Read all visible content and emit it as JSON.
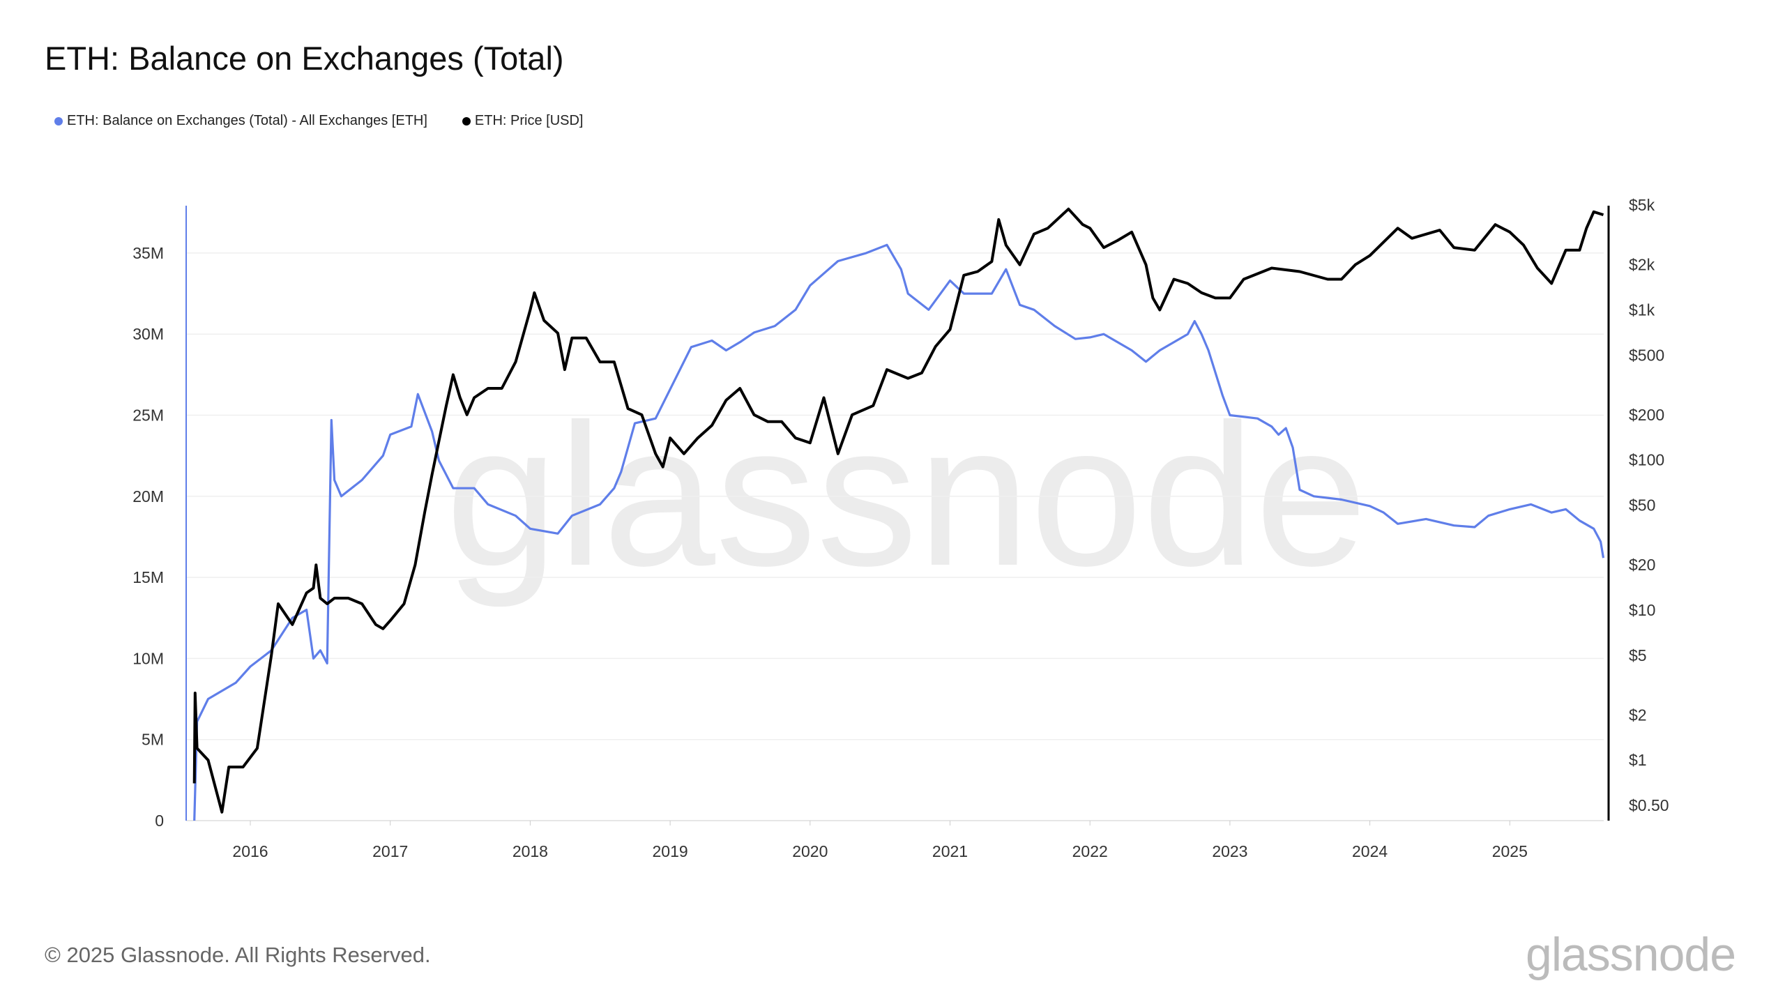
{
  "title": "ETH: Balance on Exchanges (Total)",
  "footer": "© 2025 Glassnode. All Rights Reserved.",
  "logo_text": "glassnode",
  "watermark_text": "glassnode",
  "chart_data": {
    "type": "line",
    "title": "ETH: Balance on Exchanges (Total)",
    "legend_position": "top-left",
    "grid": true,
    "x_ticks": [
      "2016",
      "2017",
      "2018",
      "2019",
      "2020",
      "2021",
      "2022",
      "2023",
      "2024",
      "2025"
    ],
    "y_left": {
      "scale": "linear",
      "ylim": [
        0,
        38000000
      ],
      "ticks": [
        {
          "v": 0,
          "label": "0"
        },
        {
          "v": 5000000,
          "label": "5M"
        },
        {
          "v": 10000000,
          "label": "10M"
        },
        {
          "v": 15000000,
          "label": "15M"
        },
        {
          "v": 20000000,
          "label": "20M"
        },
        {
          "v": 25000000,
          "label": "25M"
        },
        {
          "v": 30000000,
          "label": "30M"
        },
        {
          "v": 35000000,
          "label": "35M"
        }
      ]
    },
    "y_right": {
      "scale": "log",
      "ylim": [
        0.4,
        5000
      ],
      "ticks": [
        {
          "v": 5000,
          "label": "$5k"
        },
        {
          "v": 2000,
          "label": "$2k"
        },
        {
          "v": 1000,
          "label": "$1k"
        },
        {
          "v": 500,
          "label": "$500"
        },
        {
          "v": 200,
          "label": "$200"
        },
        {
          "v": 100,
          "label": "$100"
        },
        {
          "v": 50,
          "label": "$50"
        },
        {
          "v": 20,
          "label": "$20"
        },
        {
          "v": 10,
          "label": "$10"
        },
        {
          "v": 5,
          "label": "$5"
        },
        {
          "v": 2,
          "label": "$2"
        },
        {
          "v": 1,
          "label": "$1"
        },
        {
          "v": 0.5,
          "label": "$0.50"
        }
      ]
    },
    "series": [
      {
        "name": "ETH: Balance on Exchanges (Total) - All Exchanges [ETH]",
        "color": "#5f7ee9",
        "axis": "left",
        "points": [
          [
            "2015-08-08",
            0
          ],
          [
            "2015-08-15",
            6100000
          ],
          [
            "2015-09-13",
            7500000
          ],
          [
            "2015-11-24",
            8500000
          ],
          [
            "2016-01-01",
            9500000
          ],
          [
            "2016-02-25",
            10500000
          ],
          [
            "2016-04-20",
            12500000
          ],
          [
            "2016-05-27",
            13000000
          ],
          [
            "2016-06-14",
            10000000
          ],
          [
            "2016-07-02",
            10500000
          ],
          [
            "2016-07-20",
            9700000
          ],
          [
            "2016-07-31",
            24700000
          ],
          [
            "2016-08-08",
            21000000
          ],
          [
            "2016-08-26",
            20000000
          ],
          [
            "2016-10-19",
            21000000
          ],
          [
            "2016-12-13",
            22500000
          ],
          [
            "2017-01-01",
            23800000
          ],
          [
            "2017-02-25",
            24300000
          ],
          [
            "2017-03-14",
            26300000
          ],
          [
            "2017-04-20",
            24000000
          ],
          [
            "2017-05-08",
            22200000
          ],
          [
            "2017-06-14",
            20500000
          ],
          [
            "2017-08-08",
            20500000
          ],
          [
            "2017-09-13",
            19500000
          ],
          [
            "2017-11-24",
            18800000
          ],
          [
            "2018-01-01",
            18000000
          ],
          [
            "2018-03-14",
            17700000
          ],
          [
            "2018-04-20",
            18800000
          ],
          [
            "2018-07-02",
            19500000
          ],
          [
            "2018-08-08",
            20500000
          ],
          [
            "2018-08-26",
            21500000
          ],
          [
            "2018-09-13",
            23000000
          ],
          [
            "2018-10-01",
            24500000
          ],
          [
            "2018-11-24",
            24800000
          ],
          [
            "2019-01-01",
            26600000
          ],
          [
            "2019-02-25",
            29200000
          ],
          [
            "2019-04-20",
            29600000
          ],
          [
            "2019-05-27",
            29000000
          ],
          [
            "2019-07-02",
            29500000
          ],
          [
            "2019-08-08",
            30100000
          ],
          [
            "2019-10-01",
            30500000
          ],
          [
            "2019-11-24",
            31500000
          ],
          [
            "2020-01-01",
            33000000
          ],
          [
            "2020-03-14",
            34500000
          ],
          [
            "2020-05-27",
            35000000
          ],
          [
            "2020-07-20",
            35500000
          ],
          [
            "2020-08-26",
            34000000
          ],
          [
            "2020-09-13",
            32500000
          ],
          [
            "2020-11-06",
            31500000
          ],
          [
            "2021-01-01",
            33300000
          ],
          [
            "2021-02-06",
            32500000
          ],
          [
            "2021-04-20",
            32500000
          ],
          [
            "2021-05-27",
            34000000
          ],
          [
            "2021-07-02",
            31800000
          ],
          [
            "2021-08-08",
            31500000
          ],
          [
            "2021-10-01",
            30500000
          ],
          [
            "2021-11-24",
            29700000
          ],
          [
            "2022-01-01",
            29800000
          ],
          [
            "2022-02-06",
            30000000
          ],
          [
            "2022-04-20",
            29000000
          ],
          [
            "2022-05-27",
            28300000
          ],
          [
            "2022-07-02",
            29000000
          ],
          [
            "2022-09-13",
            30000000
          ],
          [
            "2022-10-01",
            30800000
          ],
          [
            "2022-10-19",
            30000000
          ],
          [
            "2022-11-06",
            29000000
          ],
          [
            "2022-12-13",
            26200000
          ],
          [
            "2023-01-01",
            25000000
          ],
          [
            "2023-03-14",
            24800000
          ],
          [
            "2023-04-20",
            24300000
          ],
          [
            "2023-05-08",
            23800000
          ],
          [
            "2023-05-27",
            24200000
          ],
          [
            "2023-06-14",
            23000000
          ],
          [
            "2023-07-02",
            20400000
          ],
          [
            "2023-08-08",
            20000000
          ],
          [
            "2023-10-19",
            19800000
          ],
          [
            "2024-01-01",
            19400000
          ],
          [
            "2024-02-06",
            19000000
          ],
          [
            "2024-03-14",
            18300000
          ],
          [
            "2024-05-27",
            18600000
          ],
          [
            "2024-08-08",
            18200000
          ],
          [
            "2024-10-01",
            18100000
          ],
          [
            "2024-11-06",
            18800000
          ],
          [
            "2025-01-01",
            19200000
          ],
          [
            "2025-02-25",
            19500000
          ],
          [
            "2025-04-20",
            19000000
          ],
          [
            "2025-05-27",
            19200000
          ],
          [
            "2025-07-02",
            18500000
          ],
          [
            "2025-08-08",
            18000000
          ],
          [
            "2025-08-26",
            17200000
          ],
          [
            "2025-09-02",
            16200000
          ]
        ]
      },
      {
        "name": "ETH: Price [USD]",
        "color": "#000000",
        "axis": "right",
        "points": [
          [
            "2015-08-08",
            0.7
          ],
          [
            "2015-08-10",
            2.8
          ],
          [
            "2015-08-15",
            1.2
          ],
          [
            "2015-09-13",
            1.0
          ],
          [
            "2015-10-19",
            0.45
          ],
          [
            "2015-11-06",
            0.9
          ],
          [
            "2015-12-13",
            0.9
          ],
          [
            "2016-01-19",
            1.2
          ],
          [
            "2016-02-25",
            5
          ],
          [
            "2016-03-14",
            11
          ],
          [
            "2016-04-20",
            8
          ],
          [
            "2016-05-27",
            13
          ],
          [
            "2016-06-14",
            14
          ],
          [
            "2016-06-21",
            20
          ],
          [
            "2016-07-02",
            12
          ],
          [
            "2016-07-20",
            11
          ],
          [
            "2016-08-08",
            12
          ],
          [
            "2016-09-13",
            12
          ],
          [
            "2016-10-19",
            11
          ],
          [
            "2016-11-24",
            8
          ],
          [
            "2016-12-13",
            7.5
          ],
          [
            "2017-01-01",
            8.5
          ],
          [
            "2017-02-06",
            11
          ],
          [
            "2017-03-07",
            20
          ],
          [
            "2017-04-01",
            45
          ],
          [
            "2017-04-20",
            80
          ],
          [
            "2017-05-27",
            230
          ],
          [
            "2017-06-14",
            370
          ],
          [
            "2017-07-02",
            260
          ],
          [
            "2017-07-20",
            200
          ],
          [
            "2017-08-08",
            260
          ],
          [
            "2017-09-13",
            300
          ],
          [
            "2017-10-19",
            300
          ],
          [
            "2017-11-24",
            450
          ],
          [
            "2018-01-01",
            1000
          ],
          [
            "2018-01-12",
            1300
          ],
          [
            "2018-02-06",
            850
          ],
          [
            "2018-03-14",
            700
          ],
          [
            "2018-04-01",
            400
          ],
          [
            "2018-04-20",
            650
          ],
          [
            "2018-05-27",
            650
          ],
          [
            "2018-07-02",
            450
          ],
          [
            "2018-08-08",
            450
          ],
          [
            "2018-09-13",
            220
          ],
          [
            "2018-10-19",
            200
          ],
          [
            "2018-11-24",
            110
          ],
          [
            "2018-12-13",
            90
          ],
          [
            "2019-01-01",
            140
          ],
          [
            "2019-02-06",
            110
          ],
          [
            "2019-03-14",
            140
          ],
          [
            "2019-04-20",
            170
          ],
          [
            "2019-05-27",
            250
          ],
          [
            "2019-07-02",
            300
          ],
          [
            "2019-08-08",
            200
          ],
          [
            "2019-09-13",
            180
          ],
          [
            "2019-10-19",
            180
          ],
          [
            "2019-11-24",
            140
          ],
          [
            "2020-01-01",
            130
          ],
          [
            "2020-02-06",
            260
          ],
          [
            "2020-03-14",
            110
          ],
          [
            "2020-04-20",
            200
          ],
          [
            "2020-06-14",
            230
          ],
          [
            "2020-07-20",
            400
          ],
          [
            "2020-09-13",
            350
          ],
          [
            "2020-10-19",
            380
          ],
          [
            "2020-11-24",
            570
          ],
          [
            "2021-01-01",
            740
          ],
          [
            "2021-02-06",
            1700
          ],
          [
            "2021-03-14",
            1800
          ],
          [
            "2021-04-20",
            2100
          ],
          [
            "2021-05-08",
            4000
          ],
          [
            "2021-05-27",
            2700
          ],
          [
            "2021-07-02",
            2000
          ],
          [
            "2021-08-08",
            3200
          ],
          [
            "2021-09-13",
            3500
          ],
          [
            "2021-11-06",
            4700
          ],
          [
            "2021-12-13",
            3700
          ],
          [
            "2022-01-01",
            3500
          ],
          [
            "2022-02-06",
            2600
          ],
          [
            "2022-03-14",
            2900
          ],
          [
            "2022-04-20",
            3300
          ],
          [
            "2022-05-27",
            2000
          ],
          [
            "2022-06-14",
            1200
          ],
          [
            "2022-07-02",
            1000
          ],
          [
            "2022-08-08",
            1600
          ],
          [
            "2022-09-13",
            1500
          ],
          [
            "2022-10-19",
            1300
          ],
          [
            "2022-11-24",
            1200
          ],
          [
            "2023-01-01",
            1200
          ],
          [
            "2023-02-06",
            1600
          ],
          [
            "2023-04-20",
            1900
          ],
          [
            "2023-07-02",
            1800
          ],
          [
            "2023-09-13",
            1600
          ],
          [
            "2023-10-19",
            1600
          ],
          [
            "2023-11-24",
            2000
          ],
          [
            "2024-01-01",
            2300
          ],
          [
            "2024-03-14",
            3500
          ],
          [
            "2024-04-20",
            3000
          ],
          [
            "2024-07-02",
            3400
          ],
          [
            "2024-08-08",
            2600
          ],
          [
            "2024-10-01",
            2500
          ],
          [
            "2024-11-24",
            3700
          ],
          [
            "2025-01-01",
            3300
          ],
          [
            "2025-02-06",
            2700
          ],
          [
            "2025-03-14",
            1900
          ],
          [
            "2025-04-20",
            1500
          ],
          [
            "2025-05-27",
            2500
          ],
          [
            "2025-07-02",
            2500
          ],
          [
            "2025-07-20",
            3500
          ],
          [
            "2025-08-08",
            4500
          ],
          [
            "2025-09-02",
            4300
          ]
        ]
      }
    ]
  }
}
